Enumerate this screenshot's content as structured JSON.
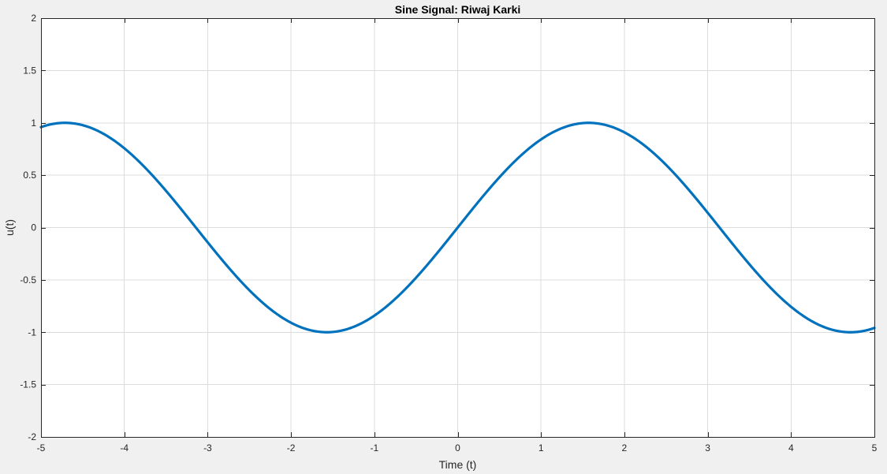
{
  "chart_data": {
    "type": "line",
    "title": "Sine Signal: Riwaj Karki",
    "xlabel": "Time (t)",
    "ylabel": "u(t)",
    "xlim": [
      -5,
      5
    ],
    "ylim": [
      -2,
      2
    ],
    "xticks": [
      -5,
      -4,
      -3,
      -2,
      -1,
      0,
      1,
      2,
      3,
      4,
      5
    ],
    "yticks": [
      -2,
      -1.5,
      -1,
      -0.5,
      0,
      0.5,
      1,
      1.5,
      2
    ],
    "xtick_labels": [
      "-5",
      "-4",
      "-3",
      "-2",
      "-1",
      "0",
      "1",
      "2",
      "3",
      "4",
      "5"
    ],
    "ytick_labels": [
      "-2",
      "-1.5",
      "-1",
      "-0.5",
      "0",
      "0.5",
      "1",
      "1.5",
      "2"
    ],
    "grid": true,
    "series": [
      {
        "function": "sin(t)",
        "x": [
          -5,
          -4.75,
          -4.5,
          -4.25,
          -4,
          -3.75,
          -3.5,
          -3.25,
          -3,
          -2.75,
          -2.5,
          -2.25,
          -2,
          -1.75,
          -1.5,
          -1.25,
          -1,
          -0.75,
          -0.5,
          -0.25,
          0,
          0.25,
          0.5,
          0.75,
          1,
          1.25,
          1.5,
          1.75,
          2,
          2.25,
          2.5,
          2.75,
          3,
          3.25,
          3.5,
          3.75,
          4,
          4.25,
          4.5,
          4.75,
          5
        ],
        "y": [
          0.9589,
          0.9993,
          0.9775,
          0.895,
          0.7568,
          0.5716,
          0.3508,
          0.1082,
          -0.1411,
          -0.3817,
          -0.5985,
          -0.7781,
          -0.9093,
          -0.984,
          -0.9975,
          -0.949,
          -0.8415,
          -0.6816,
          -0.4794,
          -0.2474,
          0,
          0.2474,
          0.4794,
          0.6816,
          0.8415,
          0.949,
          0.9975,
          0.984,
          0.9093,
          0.7781,
          0.5985,
          0.3817,
          0.1411,
          -0.1082,
          -0.3508,
          -0.5716,
          -0.7568,
          -0.895,
          -0.9775,
          -0.9993,
          -0.9589
        ]
      }
    ]
  },
  "colors": {
    "line": "#0072BD",
    "grid": "#dcdcdc",
    "axes": "#262626",
    "plot_bg": "#ffffff",
    "figure_bg": "#f0f0f0"
  }
}
